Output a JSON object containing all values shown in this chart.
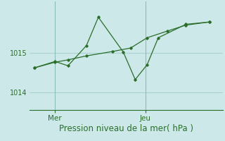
{
  "background_color": "#cce8e8",
  "grid_color": "#aad0d0",
  "line_color": "#2a6e2a",
  "xlabel": "Pression niveau de la mer( hPa )",
  "xlabel_fontsize": 8.5,
  "yticks": [
    1014,
    1015
  ],
  "ylim": [
    1013.55,
    1016.3
  ],
  "xlim": [
    0.0,
    10.5
  ],
  "xtick_positions": [
    1.4,
    6.3
  ],
  "xtick_labels": [
    "Mer",
    "Jeu"
  ],
  "spike_x": [
    0.3,
    1.4,
    2.1,
    3.1,
    3.75,
    5.1,
    5.75,
    6.4,
    7.0,
    8.5,
    9.8
  ],
  "spike_y": [
    1014.62,
    1014.78,
    1014.67,
    1015.18,
    1015.9,
    1015.02,
    1014.32,
    1014.7,
    1015.38,
    1015.72,
    1015.78
  ],
  "smooth_x": [
    0.3,
    1.4,
    2.1,
    3.1,
    4.5,
    5.5,
    6.4,
    7.5,
    8.5,
    9.8
  ],
  "smooth_y": [
    1014.62,
    1014.76,
    1014.82,
    1014.92,
    1015.03,
    1015.12,
    1015.38,
    1015.55,
    1015.7,
    1015.78
  ],
  "tick_color": "#2a6e2a",
  "label_color": "#2a6e2a"
}
